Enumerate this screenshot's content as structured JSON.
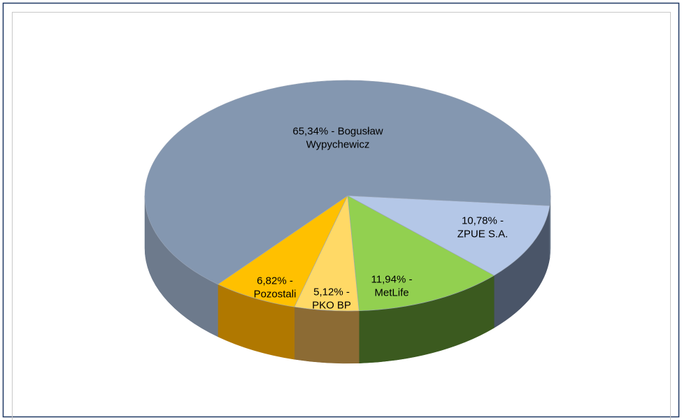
{
  "chart_data": {
    "type": "pie3d",
    "values": [
      10.78,
      11.94,
      5.12,
      6.82,
      65.34
    ],
    "value_labels": [
      [
        "10,78% -",
        "ZPUE S.A."
      ],
      [
        "11,94% -",
        "MetLife"
      ],
      [
        "5,12% -",
        "PKO BP"
      ],
      [
        "6,82% -",
        "Pozostali"
      ],
      [
        "65,34% - Bogusław",
        "Wypychewicz"
      ]
    ],
    "colors": [
      "#b4c7e7",
      "#92d050",
      "#ffd966",
      "#ffc000",
      "#8497b0"
    ],
    "side_colors": [
      "#4a5568",
      "#3b5a1f",
      "#8c6b34",
      "#b07800",
      "#6d7a8c"
    ]
  }
}
